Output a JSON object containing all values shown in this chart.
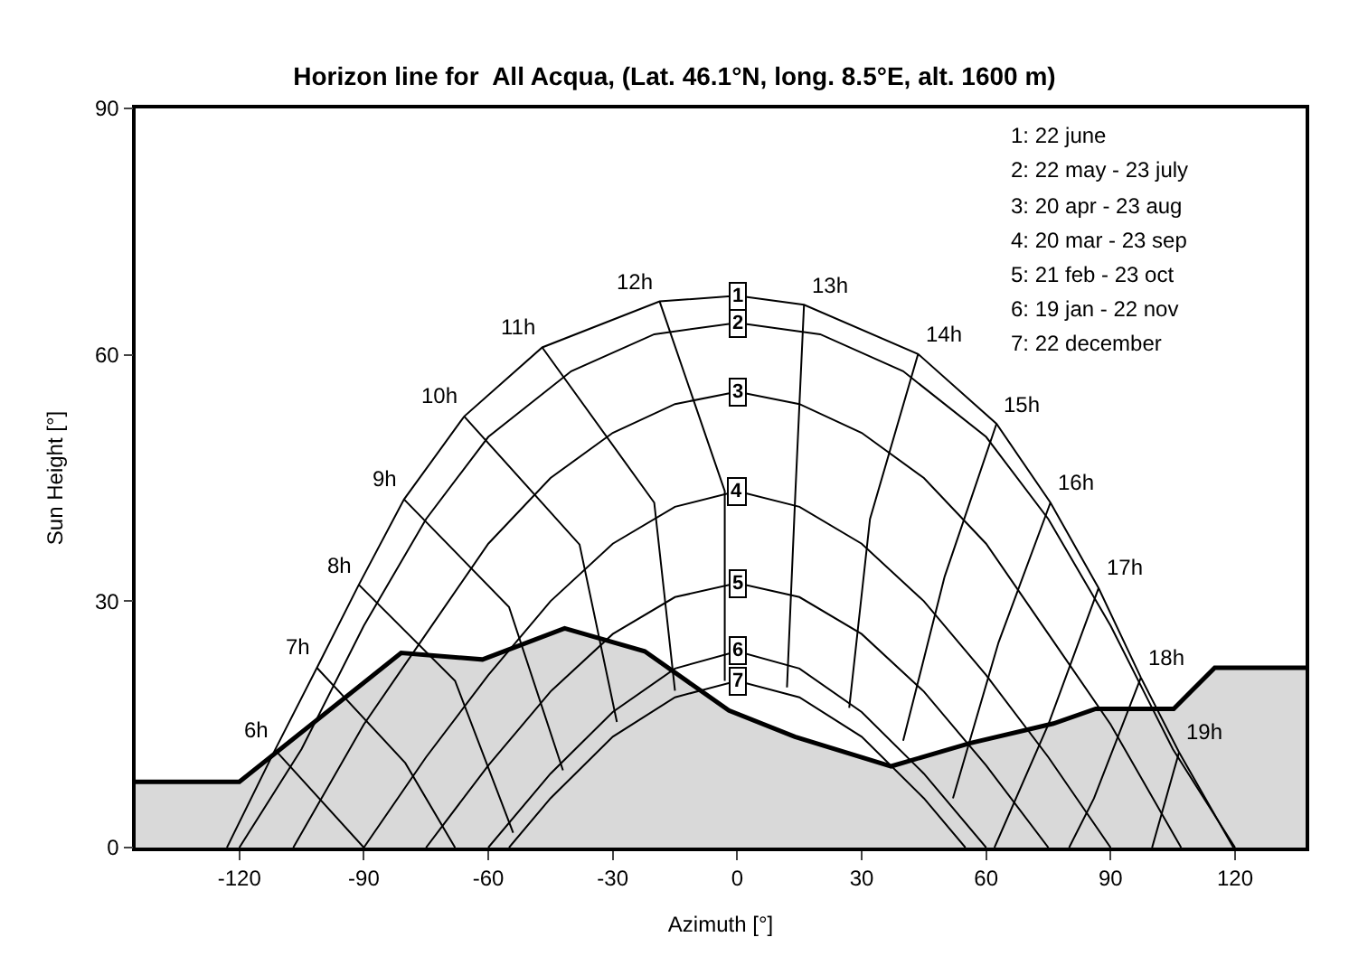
{
  "chart_data": {
    "type": "line",
    "title": "Horizon line for  All Acqua, (Lat. 46.1°N, long. 8.5°E, alt. 1600 m)",
    "xlabel": "Azimuth [°]",
    "ylabel": "Sun Height [°]",
    "xlim": [
      -145,
      137
    ],
    "ylim": [
      0,
      90
    ],
    "xticks": [
      -120,
      -90,
      -60,
      -30,
      0,
      30,
      60,
      90,
      120
    ],
    "yticks": [
      0,
      30,
      60,
      90
    ],
    "grid": false,
    "marker": "none",
    "series": [
      {
        "type": "area",
        "color": "#000000",
        "x": [
          -145,
          -120,
          -81,
          -61.4,
          -41.6,
          -22.3,
          -2,
          13.9,
          37.1,
          56,
          76.2,
          86.4,
          105.2,
          115.1,
          137
        ],
        "values": [
          8,
          8,
          23.7,
          22.9,
          26.7,
          23.9,
          16.7,
          13.5,
          9.9,
          12.7,
          15.1,
          16.9,
          16.9,
          21.9,
          21.9
        ]
      },
      {
        "name": "1",
        "color": "#000000",
        "x": [
          -123,
          -111.4,
          -101.3,
          -91.2,
          -80.3,
          -65.8,
          -47,
          -18.7,
          0,
          16.1,
          43.6,
          62.5,
          75.5,
          87.1,
          97.3,
          106.5,
          119.6
        ],
        "values": [
          0,
          11.9,
          21.9,
          32,
          42.4,
          52.5,
          60.9,
          66.5,
          67.2,
          66.1,
          60.1,
          51.6,
          42,
          31.6,
          20.7,
          11.6,
          0
        ]
      },
      {
        "name": "2",
        "color": "#000000",
        "x": [
          -120,
          -105,
          -90,
          -75,
          -60,
          -40,
          -20,
          0,
          20,
          40,
          60,
          75,
          90,
          105,
          120
        ],
        "values": [
          0,
          12,
          27,
          40,
          50,
          58,
          62.5,
          63.9,
          62.5,
          58,
          50,
          40,
          27,
          12,
          0
        ]
      },
      {
        "name": "3",
        "color": "#000000",
        "x": [
          -107,
          -90,
          -75,
          -60,
          -45,
          -30,
          -15,
          0,
          15,
          30,
          45,
          60,
          75,
          90,
          107
        ],
        "values": [
          0,
          15,
          26,
          37,
          45,
          50.5,
          54,
          55.5,
          54,
          50.5,
          45,
          37,
          26,
          15,
          0
        ]
      },
      {
        "name": "4",
        "color": "#000000",
        "x": [
          -90,
          -75,
          -60,
          -45,
          -30,
          -15,
          0,
          15,
          30,
          45,
          60,
          75,
          90
        ],
        "values": [
          0,
          11,
          21,
          30,
          37,
          41.5,
          43.4,
          41.5,
          37,
          30,
          21,
          11,
          0
        ]
      },
      {
        "name": "5",
        "color": "#000000",
        "x": [
          -75,
          -60,
          -45,
          -30,
          -15,
          0,
          15,
          30,
          45,
          60,
          75
        ],
        "values": [
          0,
          10,
          19,
          26,
          30.5,
          32.2,
          30.5,
          26,
          19,
          10,
          0
        ]
      },
      {
        "name": "6",
        "color": "#000000",
        "x": [
          -60,
          -45,
          -30,
          -15,
          0,
          15,
          30,
          45,
          60
        ],
        "values": [
          0,
          9,
          16.5,
          21.8,
          23.9,
          21.8,
          16.5,
          9,
          0
        ]
      },
      {
        "name": "7",
        "color": "#000000",
        "x": [
          -55,
          -45,
          -30,
          -15,
          0,
          15,
          30,
          45,
          55
        ],
        "values": [
          0,
          6,
          13.5,
          18.3,
          20.3,
          18.3,
          13.5,
          6,
          0
        ]
      },
      {
        "name": "6h",
        "color": "#000000",
        "x": [
          -111.4,
          -90
        ],
        "values": [
          11.9,
          0
        ]
      },
      {
        "name": "7h",
        "color": "#000000",
        "x": [
          -101.3,
          -80,
          -68
        ],
        "values": [
          21.9,
          10.3,
          0
        ]
      },
      {
        "name": "8h",
        "color": "#000000",
        "x": [
          -91.2,
          -68,
          -54
        ],
        "values": [
          32,
          20.3,
          1.8
        ]
      },
      {
        "name": "9h",
        "color": "#000000",
        "x": [
          -80.3,
          -55,
          -42
        ],
        "values": [
          42.4,
          29.3,
          9.4
        ]
      },
      {
        "name": "10h",
        "color": "#000000",
        "x": [
          -65.8,
          -38,
          -29
        ],
        "values": [
          52.5,
          36.9,
          15.3
        ]
      },
      {
        "name": "11h",
        "color": "#000000",
        "x": [
          -47,
          -20,
          -15
        ],
        "values": [
          60.9,
          42,
          19.1
        ]
      },
      {
        "name": "12h",
        "color": "#000000",
        "x": [
          -18.7,
          -3,
          -3
        ],
        "values": [
          66.5,
          43.4,
          20.3
        ]
      },
      {
        "name": "13h",
        "color": "#000000",
        "x": [
          16.1,
          14,
          12
        ],
        "values": [
          66.1,
          43,
          19.5
        ]
      },
      {
        "name": "14h",
        "color": "#000000",
        "x": [
          43.6,
          32,
          27
        ],
        "values": [
          60.1,
          40,
          17
        ]
      },
      {
        "name": "15h",
        "color": "#000000",
        "x": [
          62.5,
          50,
          40
        ],
        "values": [
          51.6,
          33,
          13
        ]
      },
      {
        "name": "16h",
        "color": "#000000",
        "x": [
          75.5,
          63,
          52
        ],
        "values": [
          42,
          25,
          6
        ]
      },
      {
        "name": "17h",
        "color": "#000000",
        "x": [
          87.1,
          75,
          62
        ],
        "values": [
          31.6,
          15,
          0
        ]
      },
      {
        "name": "18h",
        "color": "#000000",
        "x": [
          97.3,
          86,
          80
        ],
        "values": [
          20.7,
          6,
          0
        ]
      },
      {
        "name": "19h",
        "color": "#000000",
        "x": [
          106.5,
          100
        ],
        "values": [
          11.6,
          0
        ]
      }
    ],
    "annotations": [
      "1: 22 june",
      "2: 22 may - 23 july",
      "3: 20 apr - 23 aug",
      "4: 20 mar - 23 sep",
      "5: 21 feb - 23 oct",
      "6: 19 jan - 22 nov",
      "7: 22 december"
    ]
  }
}
